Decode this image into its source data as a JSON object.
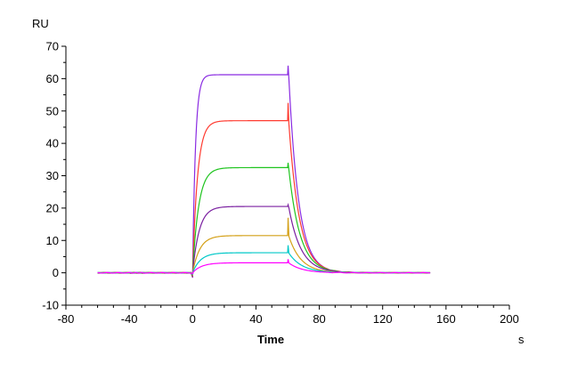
{
  "chart_data": {
    "type": "line",
    "title": "",
    "xlabel": "Time",
    "x_unit": "s",
    "ylabel": "RU",
    "xlim": [
      -80,
      200
    ],
    "ylim": [
      -10,
      70
    ],
    "x_ticks": [
      -80,
      -40,
      0,
      40,
      80,
      120,
      160,
      200
    ],
    "y_ticks": [
      -10,
      0,
      10,
      20,
      30,
      40,
      50,
      60,
      70
    ],
    "grid": false,
    "legend": "none",
    "injection_start": 0,
    "injection_end": 60,
    "series": [
      {
        "color": "#8a2be2",
        "plateau": 61.2,
        "spike": 64.0,
        "ka": 0.55,
        "kd": 0.16
      },
      {
        "color": "#ff3b30",
        "plateau": 47.0,
        "spike": 52.5,
        "ka": 0.32,
        "kd": 0.15
      },
      {
        "color": "#1fc41f",
        "plateau": 32.5,
        "spike": 34.0,
        "ka": 0.26,
        "kd": 0.14
      },
      {
        "color": "#7a1fa0",
        "plateau": 20.5,
        "spike": 21.0,
        "ka": 0.24,
        "kd": 0.13
      },
      {
        "color": "#d4a017",
        "plateau": 11.5,
        "spike": 17.0,
        "ka": 0.22,
        "kd": 0.13
      },
      {
        "color": "#00c8c8",
        "plateau": 6.2,
        "spike": 8.5,
        "ka": 0.2,
        "kd": 0.12
      },
      {
        "color": "#ff00ff",
        "plateau": 3.1,
        "spike": 4.2,
        "ka": 0.18,
        "kd": 0.12
      }
    ]
  }
}
